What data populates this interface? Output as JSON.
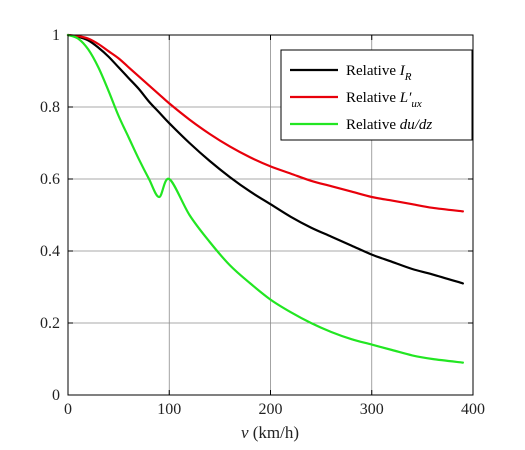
{
  "chart_data": {
    "type": "line",
    "title": "",
    "xlabel_var": "v",
    "xlabel_unit": " (km/h)",
    "ylabel": "",
    "xlim": [
      0,
      400
    ],
    "ylim": [
      0,
      1
    ],
    "xticks": [
      0,
      100,
      200,
      300,
      400
    ],
    "yticks": [
      0,
      0.2,
      0.4,
      0.6,
      0.8,
      1
    ],
    "xtick_labels": [
      "0",
      "100",
      "200",
      "300",
      "400"
    ],
    "ytick_labels": [
      "0",
      "0.2",
      "0.4",
      "0.6",
      "0.8",
      "1"
    ],
    "grid": true,
    "legend_position": "top-right",
    "series": [
      {
        "name": "Relative I_R",
        "legend_text": "Relative ",
        "legend_var": "I",
        "legend_sub": "R",
        "color": "#000000",
        "x": [
          0,
          10,
          20,
          30,
          40,
          50,
          60,
          70,
          80,
          90,
          100,
          120,
          140,
          160,
          180,
          200,
          220,
          240,
          260,
          280,
          300,
          320,
          340,
          360,
          390
        ],
        "y": [
          1.0,
          0.995,
          0.985,
          0.965,
          0.94,
          0.91,
          0.88,
          0.85,
          0.815,
          0.785,
          0.755,
          0.7,
          0.65,
          0.605,
          0.565,
          0.53,
          0.495,
          0.465,
          0.44,
          0.415,
          0.39,
          0.37,
          0.35,
          0.335,
          0.31
        ]
      },
      {
        "name": "Relative L'_ux",
        "legend_text": "Relative ",
        "legend_var": "L′",
        "legend_sub": "ux",
        "color": "#e8000b",
        "x": [
          0,
          10,
          20,
          30,
          40,
          50,
          60,
          70,
          80,
          90,
          100,
          120,
          140,
          160,
          180,
          200,
          220,
          240,
          260,
          280,
          300,
          320,
          340,
          360,
          390
        ],
        "y": [
          1.0,
          0.997,
          0.99,
          0.975,
          0.955,
          0.935,
          0.91,
          0.885,
          0.86,
          0.835,
          0.81,
          0.765,
          0.725,
          0.69,
          0.66,
          0.635,
          0.615,
          0.595,
          0.58,
          0.565,
          0.55,
          0.54,
          0.53,
          0.52,
          0.51
        ]
      },
      {
        "name": "Relative du/dz",
        "legend_text": "Relative ",
        "legend_var": "du/dz",
        "legend_sub": "",
        "color": "#22e622",
        "x": [
          0,
          10,
          20,
          30,
          40,
          50,
          60,
          70,
          80,
          90,
          100,
          120,
          140,
          160,
          180,
          200,
          220,
          240,
          260,
          280,
          300,
          320,
          340,
          360,
          390
        ],
        "y": [
          1.0,
          0.99,
          0.96,
          0.91,
          0.845,
          0.775,
          0.715,
          0.655,
          0.6,
          0.55,
          0.6,
          0.5,
          0.425,
          0.36,
          0.31,
          0.265,
          0.23,
          0.2,
          0.175,
          0.155,
          0.14,
          0.125,
          0.11,
          0.1,
          0.09
        ]
      }
    ]
  }
}
